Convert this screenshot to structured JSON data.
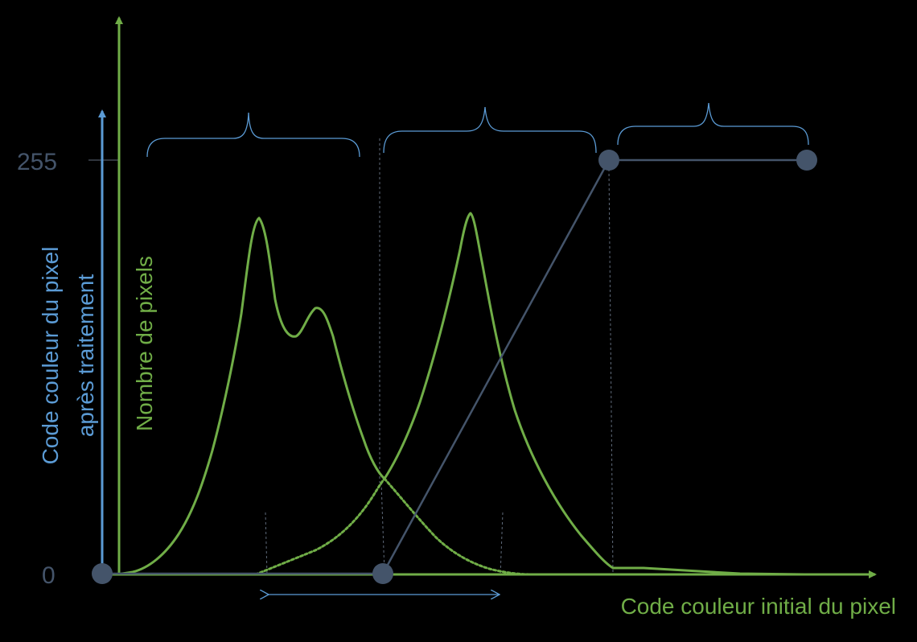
{
  "colors": {
    "background": "#000000",
    "green": "#70ad47",
    "blue": "#5b9bd5",
    "slate": "#44546a",
    "guide": "#5f6a7a"
  },
  "axes": {
    "y_tick_high": "255",
    "y_tick_zero": "0",
    "y_label_blue_line1": "Code couleur du pixel",
    "y_label_blue_line2": "après traitement",
    "y_label_green": "Nombre de pixels",
    "x_label": "Code couleur initial du pixel"
  },
  "transfer_function": {
    "points": [
      [
        0,
        0
      ],
      [
        1,
        0
      ],
      [
        2,
        255
      ],
      [
        3,
        255
      ]
    ],
    "marker_icon": "circle-marker"
  }
}
